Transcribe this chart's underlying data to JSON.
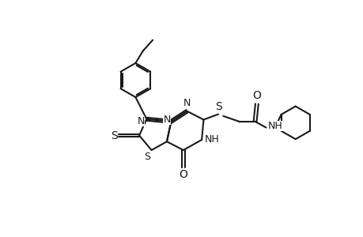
{
  "bg_color": "#ffffff",
  "line_color": "#1a1a1a",
  "line_width": 1.5,
  "font_size": 9,
  "fig_width": 4.6,
  "fig_height": 3.0,
  "dpi": 100
}
